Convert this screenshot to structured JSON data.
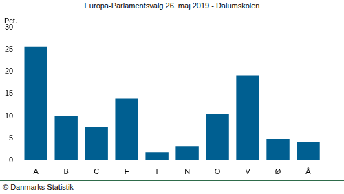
{
  "chart_data": {
    "type": "bar",
    "title": "Europa-Parlamentsvalg 26. maj 2019 - Dalumskolen",
    "ylabel": "Pct.",
    "source": "© Danmarks Statistik",
    "categories": [
      "A",
      "B",
      "C",
      "F",
      "I",
      "N",
      "O",
      "V",
      "Ø",
      "Å"
    ],
    "values": [
      25.7,
      10.0,
      7.5,
      13.9,
      1.8,
      3.2,
      10.5,
      19.2,
      4.8,
      4.1
    ],
    "color": "#005f91",
    "ylim": [
      0,
      30
    ],
    "yticks": [
      0,
      5,
      10,
      15,
      20,
      25,
      30
    ],
    "grid": false
  }
}
